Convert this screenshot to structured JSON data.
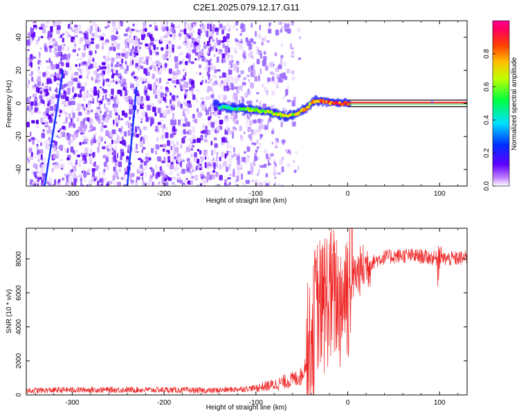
{
  "title": "C2E1.2025.079.12.17.G11",
  "chart_data": [
    {
      "type": "heatmap",
      "xlabel": "Height of straight line (km)",
      "ylabel": "Frequency (Hz)",
      "xlim": [
        -350,
        130
      ],
      "ylim": [
        -50,
        50
      ],
      "xticks": [
        -300,
        -200,
        -100,
        0,
        100
      ],
      "yticks": [
        -40,
        -20,
        0,
        20,
        40
      ],
      "colorbar": {
        "label": "Normalized spectral amplitude",
        "range": [
          0,
          1
        ],
        "ticks": [
          "0.0",
          "0.2",
          "0.4",
          "0.6",
          "0.8"
        ],
        "colormap": [
          "#ffffff",
          "#8000ff",
          "#0000ff",
          "#00ffff",
          "#00ff00",
          "#ffff00",
          "#ff8000",
          "#ff0000",
          "#ff0080"
        ]
      },
      "features": {
        "noise_region_km": [
          -350,
          -65
        ],
        "tone_line": [
          {
            "x": -140,
            "y": -2
          },
          {
            "x": -120,
            "y": -3
          },
          {
            "x": -100,
            "y": -4
          },
          {
            "x": -80,
            "y": -6
          },
          {
            "x": -65,
            "y": -8
          },
          {
            "x": -55,
            "y": -6
          },
          {
            "x": -45,
            "y": -3
          },
          {
            "x": -35,
            "y": 2
          },
          {
            "x": -25,
            "y": 1
          },
          {
            "x": -15,
            "y": 0
          },
          {
            "x": 0,
            "y": 0
          },
          {
            "x": 130,
            "y": 0
          }
        ],
        "diagonal_streaks": [
          {
            "x1": -330,
            "y1": -50,
            "x2": -310,
            "y2": 20
          },
          {
            "x1": -240,
            "y1": -50,
            "x2": -230,
            "y2": 10
          }
        ]
      },
      "grid": false,
      "legend": "none"
    },
    {
      "type": "line",
      "xlabel": "Height of straight line (km)",
      "ylabel": "SNR (10 * v/v)",
      "xlim": [
        -350,
        130
      ],
      "ylim": [
        0,
        9800
      ],
      "xticks": [
        -300,
        -200,
        -100,
        0,
        100
      ],
      "yticks": [
        0,
        2000,
        4000,
        6000,
        8000
      ],
      "series": [
        {
          "color": "#ee2222",
          "x": [
            -350,
            -300,
            -250,
            -200,
            -150,
            -100,
            -80,
            -60,
            -50,
            -45,
            -40,
            -35,
            -30,
            -25,
            -20,
            -15,
            -10,
            -5,
            0,
            10,
            20,
            30,
            40,
            60,
            80,
            100,
            110,
            130
          ],
          "y": [
            250,
            300,
            300,
            300,
            250,
            400,
            600,
            900,
            1100,
            2000,
            3600,
            4800,
            5100,
            5500,
            5700,
            5900,
            5500,
            6000,
            6600,
            7100,
            7600,
            7900,
            8100,
            8200,
            8150,
            8000,
            8000,
            8050
          ]
        }
      ],
      "grid": false,
      "legend": "none"
    }
  ]
}
